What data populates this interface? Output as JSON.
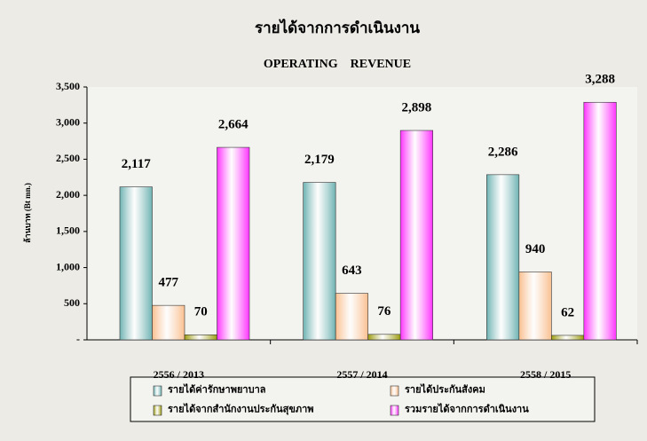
{
  "chart_data": {
    "type": "bar",
    "title": "รายได้จากการดำเนินงาน",
    "subtitle": "OPERATING    REVENUE",
    "y_label": "ล้านบาท (Bt mn.)",
    "categories": [
      "2556 / 2013",
      "2557 / 2014",
      "2558 / 2015"
    ],
    "series": [
      {
        "name": "รายได้ค่ารักษาพยาบาล",
        "color": "#6fb3b3",
        "values": [
          2117,
          2179,
          2286
        ],
        "value_labels": [
          "2,117",
          "2,179",
          "2,286"
        ]
      },
      {
        "name": "รายได้ประกันสังคม",
        "color": "#fac090",
        "values": [
          477,
          643,
          940
        ]
      },
      {
        "name": "รายได้จากสำนักงานประกันสุขภาพ",
        "color": "#9c9c10",
        "values": [
          70,
          76,
          62
        ]
      },
      {
        "name": "รวมรายได้จากการดำเนินงาน",
        "color": "#ff33ff",
        "values": [
          2664,
          2898,
          3288
        ],
        "value_labels": [
          "2,664",
          "2,898",
          "3,288"
        ]
      }
    ],
    "ylim": [
      0,
      3500
    ],
    "yticks": [
      {
        "value": 0,
        "label": "-"
      },
      500,
      {
        "value": 1000,
        "label": "1,000"
      },
      {
        "value": 1500,
        "label": "1,500"
      },
      {
        "value": 2000,
        "label": "2,000"
      },
      {
        "value": 2500,
        "label": "2,500"
      },
      {
        "value": 3000,
        "label": "3,000"
      },
      {
        "value": 3500,
        "label": "3,500"
      }
    ]
  }
}
